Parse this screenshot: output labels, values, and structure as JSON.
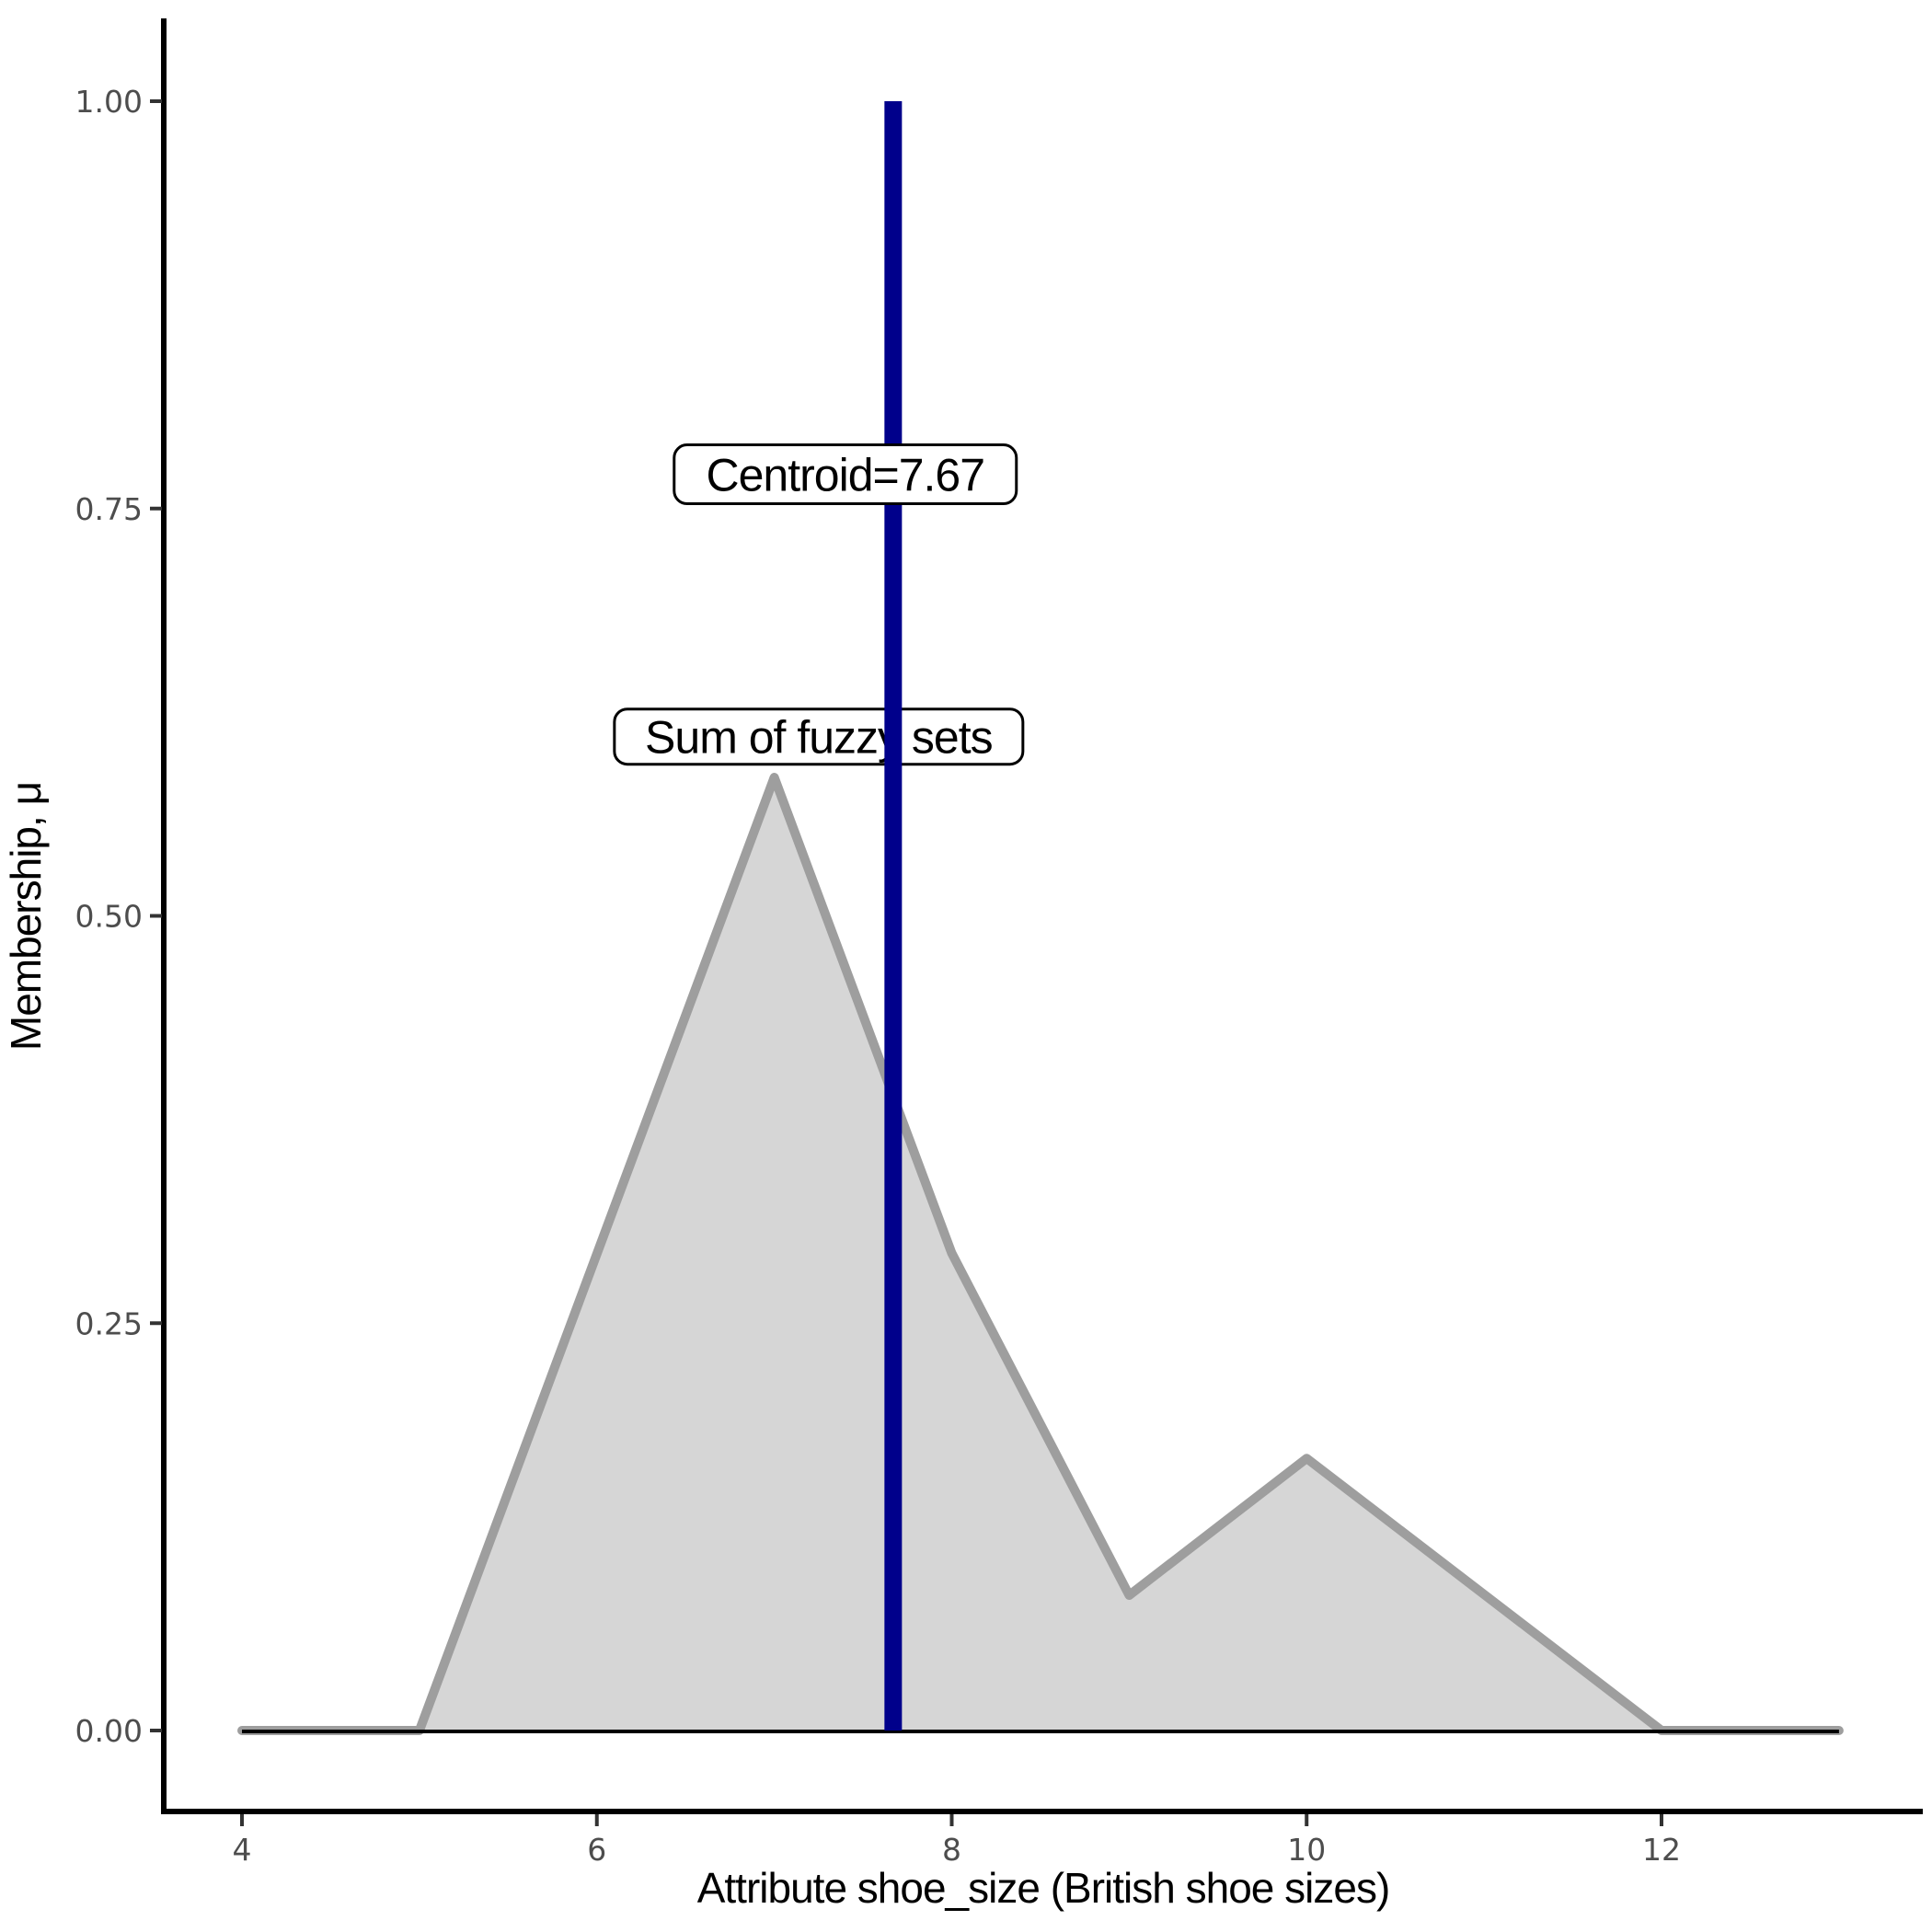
{
  "chart_data": {
    "type": "area",
    "title": "",
    "xlabel": "Attribute shoe_size (British shoe sizes)",
    "ylabel": "Membership, μ",
    "xlim": [
      4,
      13
    ],
    "ylim": [
      0,
      1
    ],
    "grid": false,
    "legend": "none",
    "x_ticks": {
      "values": [
        4,
        6,
        8,
        10,
        12
      ],
      "labels": [
        "4",
        "6",
        "8",
        "10",
        "12"
      ]
    },
    "y_ticks": {
      "values": [
        0,
        0.25,
        0.5,
        0.75,
        1.0
      ],
      "labels": [
        "0.00",
        "0.25",
        "0.50",
        "0.75",
        "1.00"
      ]
    },
    "series": [
      {
        "name": "Sum of fuzzy sets",
        "points": [
          [
            4,
            0
          ],
          [
            5,
            0
          ],
          [
            7,
            0.585
          ],
          [
            8,
            0.293
          ],
          [
            9,
            0.083
          ],
          [
            10,
            0.167
          ],
          [
            12,
            0
          ],
          [
            13,
            0
          ]
        ]
      }
    ],
    "baseline": {
      "y": 0,
      "x_start": 4,
      "x_end": 13
    },
    "centroid": {
      "value": 7.67
    },
    "annotations": [
      {
        "id": "centroid",
        "text": "Centroid=7.67",
        "x": 7.4,
        "y": 0.771
      },
      {
        "id": "sum",
        "text": "Sum of fuzzy sets",
        "x": 7.25,
        "y": 0.61
      }
    ],
    "colors": {
      "background": "#ffffff",
      "area_fill": "#d6d6d6",
      "area_stroke": "#9e9e9e",
      "baseline": "#000000",
      "centroid_line": "#00008b",
      "axis_line": "#000000",
      "tick_mark": "#333333",
      "tick_label": "#4d4d4d",
      "axis_title": "#000000",
      "annotation_bg": "#ffffff",
      "annotation_border": "#000000"
    }
  }
}
